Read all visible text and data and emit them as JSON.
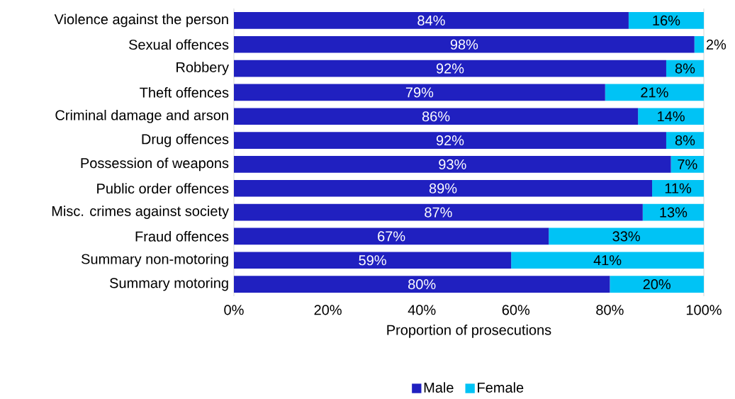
{
  "chart_data": {
    "type": "bar",
    "orientation": "horizontal",
    "stacked": true,
    "categories": [
      "Violence against the person",
      "Sexual offences",
      "Robbery",
      "Theft offences",
      "Criminal damage and arson",
      "Drug offences",
      "Possession of weapons",
      "Public order offences",
      "Misc. crimes against society",
      "Fraud offences",
      "Summary non-motoring",
      "Summary motoring"
    ],
    "series": [
      {
        "name": "Male",
        "color": "#2020c0",
        "values": [
          84,
          98,
          92,
          79,
          86,
          92,
          93,
          89,
          87,
          67,
          59,
          80
        ],
        "value_labels": [
          "84%",
          "98%",
          "92%",
          "79%",
          "86%",
          "92%",
          "93%",
          "89%",
          "87%",
          "67%",
          "59%",
          "80%"
        ]
      },
      {
        "name": "Female",
        "color": "#00c3f5",
        "values": [
          16,
          2,
          8,
          21,
          14,
          8,
          7,
          11,
          13,
          33,
          41,
          20
        ],
        "value_labels": [
          "16%",
          "2%",
          "8%",
          "21%",
          "14%",
          "8%",
          "7%",
          "11%",
          "13%",
          "33%",
          "41%",
          "20%"
        ]
      }
    ],
    "xlim": [
      0,
      100
    ],
    "xticks": [
      {
        "value": 0,
        "label": "0%"
      },
      {
        "value": 20,
        "label": "20%"
      },
      {
        "value": 40,
        "label": "40%"
      },
      {
        "value": 60,
        "label": "60%"
      },
      {
        "value": 80,
        "label": "80%"
      },
      {
        "value": 100,
        "label": "100%"
      }
    ],
    "xlabel": "Proportion of prosecutions",
    "legend": "bottom"
  }
}
